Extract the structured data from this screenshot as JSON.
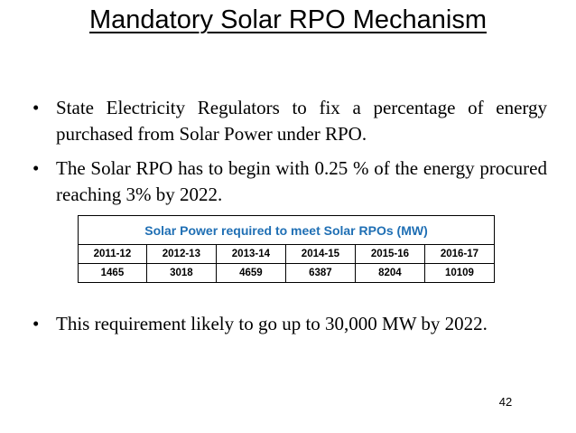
{
  "slide": {
    "title": "Mandatory Solar RPO Mechanism",
    "bullets": [
      "State Electricity Regulators to fix a percentage of energy purchased from Solar Power under RPO.",
      "The Solar RPO has to begin with 0.25 % of the energy procured reaching 3% by 2022.",
      "This requirement likely to go up to 30,000 MW by 2022."
    ],
    "bullet_symbol": "•",
    "page_number": "42"
  },
  "table": {
    "header": "Solar Power required to meet Solar RPOs (MW)",
    "years": [
      "2011-12",
      "2012-13",
      "2013-14",
      "2014-15",
      "2015-16",
      "2016-17"
    ],
    "values": [
      "1465",
      "3018",
      "4659",
      "6387",
      "8204",
      "10109"
    ],
    "header_color": "#1f6fb4"
  }
}
